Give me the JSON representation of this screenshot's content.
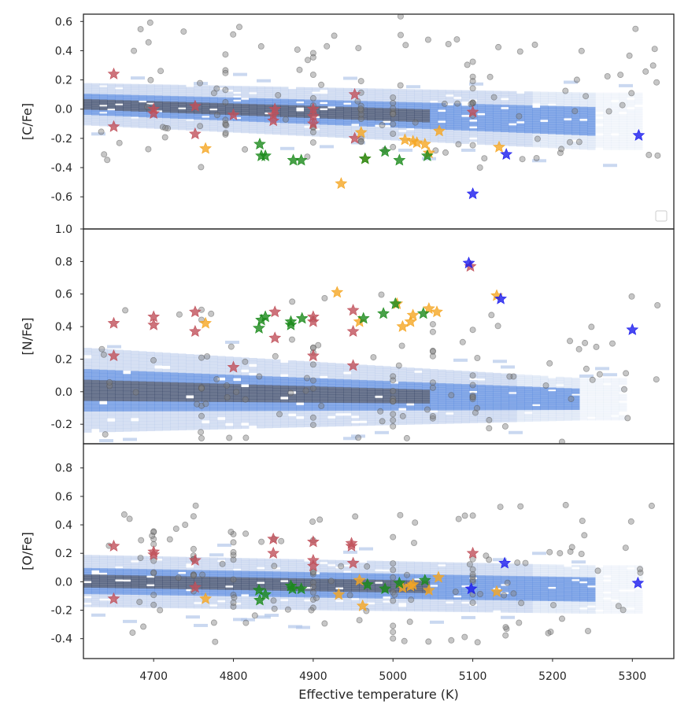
{
  "figure": {
    "xlabel": "Effective temperature (K)",
    "xlim": [
      4612,
      5352
    ],
    "xticks": [
      4700,
      4800,
      4900,
      5000,
      5100,
      5200,
      5300
    ],
    "colors": {
      "density_light": "#b4c7ea",
      "density_mid": "#5f8ee0",
      "density_dark": "#3b4a6b",
      "background_stars": "#808080",
      "red_stars": "#c0505a",
      "orange_stars": "#f5a623",
      "green_stars": "#1a8a1a",
      "blue_stars": "#1a1aee"
    }
  },
  "chart_data": [
    {
      "type": "scatter",
      "panel": "C",
      "ylabel": "[C/Fe]",
      "ylim": [
        -0.82,
        0.65
      ],
      "yticks": [
        -0.6,
        -0.4,
        -0.2,
        0.0,
        0.2,
        0.4,
        0.6
      ],
      "density": {
        "center_start": 0.03,
        "center_slope": -0.12,
        "halfwidth_start": 0.11,
        "halfwidth_end": 0.15,
        "extent_end": 5250
      },
      "background": {
        "ref_temps": [
          4790,
          4900,
          4960,
          5000,
          5100
        ],
        "base": 0.0,
        "spread": 0.22,
        "outlier_spread": 0.55
      },
      "series": [
        {
          "name": "red",
          "x": [
            4650,
            4650,
            4700,
            4700,
            4752,
            4752,
            4800,
            4850,
            4850,
            4852,
            4900,
            4900,
            4900,
            4952,
            4952,
            5100
          ],
          "y": [
            0.24,
            -0.12,
            0.0,
            -0.03,
            0.02,
            -0.17,
            -0.04,
            -0.04,
            -0.08,
            0.0,
            -0.05,
            -0.1,
            0.0,
            0.1,
            -0.2,
            -0.02
          ]
        },
        {
          "name": "orange",
          "x": [
            4765,
            4935,
            4960,
            4965,
            5015,
            5025,
            5030,
            5040,
            5045,
            5058,
            5133
          ],
          "y": [
            -0.27,
            -0.51,
            -0.16,
            -0.34,
            -0.21,
            -0.22,
            -0.23,
            -0.24,
            -0.3,
            -0.15,
            -0.26
          ]
        },
        {
          "name": "green",
          "x": [
            4833,
            4835,
            4840,
            4875,
            4885,
            4965,
            4990,
            5008,
            5043
          ],
          "y": [
            -0.24,
            -0.32,
            -0.32,
            -0.35,
            -0.35,
            -0.34,
            -0.29,
            -0.35,
            -0.32
          ]
        },
        {
          "name": "blue",
          "x": [
            5100,
            5142,
            5308
          ],
          "y": [
            -0.58,
            -0.31,
            -0.18
          ]
        }
      ],
      "legend": {
        "location": "lower-right",
        "entries": []
      }
    },
    {
      "type": "scatter",
      "panel": "N",
      "ylabel": "[N/Fe]",
      "ylim": [
        -0.32,
        1.0
      ],
      "yticks": [
        -0.2,
        0.0,
        0.2,
        0.4,
        0.6,
        0.8,
        1.0
      ],
      "density": {
        "center_start": 0.0,
        "center_slope": -0.05,
        "halfwidth_start": 0.2,
        "halfwidth_end": 0.1,
        "extent_end": 5230
      },
      "background": {
        "ref_temps": [
          4760,
          4900,
          5000,
          5050,
          5100
        ],
        "base": 0.05,
        "spread": 0.18,
        "outlier_spread": 0.55
      },
      "series": [
        {
          "name": "red",
          "x": [
            4650,
            4650,
            4700,
            4700,
            4752,
            4752,
            4800,
            4852,
            4852,
            4900,
            4900,
            4900,
            4950,
            4950,
            4950,
            5097
          ],
          "y": [
            0.42,
            0.22,
            0.46,
            0.41,
            0.49,
            0.37,
            0.15,
            0.49,
            0.33,
            0.46,
            0.43,
            0.22,
            0.5,
            0.37,
            0.16,
            0.77
          ]
        },
        {
          "name": "orange",
          "x": [
            4765,
            4930,
            4958,
            5005,
            5012,
            5022,
            5025,
            5045,
            5055,
            5130
          ],
          "y": [
            0.42,
            0.61,
            0.43,
            0.54,
            0.4,
            0.43,
            0.47,
            0.51,
            0.49,
            0.59
          ]
        },
        {
          "name": "green",
          "x": [
            4832,
            4835,
            4840,
            4872,
            4872,
            4886,
            4963,
            4988,
            5003,
            5038
          ],
          "y": [
            0.39,
            0.44,
            0.46,
            0.41,
            0.43,
            0.45,
            0.45,
            0.48,
            0.54,
            0.48
          ]
        },
        {
          "name": "blue",
          "x": [
            5095,
            5135,
            5300
          ],
          "y": [
            0.79,
            0.57,
            0.38
          ]
        }
      ]
    },
    {
      "type": "scatter",
      "panel": "O",
      "ylabel": "[O/Fe]",
      "ylim": [
        -0.54,
        0.97
      ],
      "yticks": [
        -0.4,
        -0.2,
        0.0,
        0.2,
        0.4,
        0.6,
        0.8
      ],
      "density": {
        "center_start": 0.0,
        "center_slope": -0.06,
        "halfwidth_start": 0.14,
        "halfwidth_end": 0.13,
        "extent_end": 5250
      },
      "background": {
        "ref_temps": [
          4700,
          4750,
          4800,
          4900,
          5000,
          5100
        ],
        "base": 0.05,
        "spread": 0.2,
        "outlier_spread": 0.5
      },
      "series": [
        {
          "name": "red",
          "x": [
            4650,
            4650,
            4700,
            4700,
            4752,
            4752,
            4850,
            4850,
            4900,
            4900,
            4900,
            4948,
            4948,
            4950,
            5100
          ],
          "y": [
            0.25,
            -0.12,
            0.21,
            0.19,
            0.15,
            -0.04,
            0.3,
            0.2,
            0.28,
            0.15,
            0.11,
            0.27,
            0.25,
            0.13,
            0.2
          ]
        },
        {
          "name": "orange",
          "x": [
            4765,
            4932,
            4958,
            4962,
            5012,
            5022,
            5025,
            5045,
            5057,
            5130
          ],
          "y": [
            -0.12,
            -0.09,
            0.01,
            -0.17,
            -0.04,
            -0.03,
            -0.02,
            -0.06,
            0.03,
            -0.07
          ]
        },
        {
          "name": "green",
          "x": [
            4832,
            4833,
            4840,
            4872,
            4874,
            4885,
            4968,
            4990,
            5008,
            5040
          ],
          "y": [
            -0.06,
            -0.13,
            -0.09,
            -0.03,
            -0.05,
            -0.05,
            -0.02,
            -0.05,
            -0.01,
            0.01
          ]
        },
        {
          "name": "blue",
          "x": [
            5098,
            5140,
            5307
          ],
          "y": [
            -0.05,
            0.13,
            -0.01
          ]
        }
      ]
    }
  ]
}
